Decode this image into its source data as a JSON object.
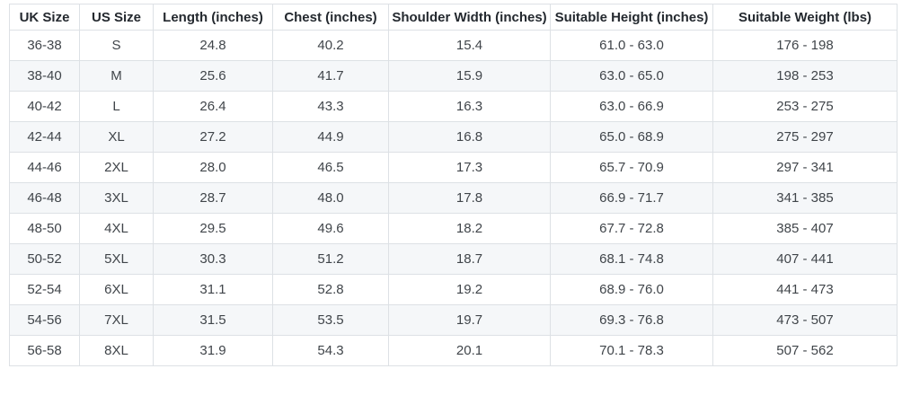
{
  "table": {
    "name": "size-chart",
    "columns": [
      "UK Size",
      "US Size",
      "Length (inches)",
      "Chest (inches)",
      "Shoulder Width (inches)",
      "Suitable Height (inches)",
      "Suitable Weight (lbs)"
    ],
    "rows": [
      [
        "36-38",
        "S",
        "24.8",
        "40.2",
        "15.4",
        "61.0 - 63.0",
        "176 - 198"
      ],
      [
        "38-40",
        "M",
        "25.6",
        "41.7",
        "15.9",
        "63.0 - 65.0",
        "198 - 253"
      ],
      [
        "40-42",
        "L",
        "26.4",
        "43.3",
        "16.3",
        "63.0 - 66.9",
        "253 - 275"
      ],
      [
        "42-44",
        "XL",
        "27.2",
        "44.9",
        "16.8",
        "65.0 - 68.9",
        "275 - 297"
      ],
      [
        "44-46",
        "2XL",
        "28.0",
        "46.5",
        "17.3",
        "65.7 - 70.9",
        "297 - 341"
      ],
      [
        "46-48",
        "3XL",
        "28.7",
        "48.0",
        "17.8",
        "66.9 - 71.7",
        "341 - 385"
      ],
      [
        "48-50",
        "4XL",
        "29.5",
        "49.6",
        "18.2",
        "67.7 - 72.8",
        "385 - 407"
      ],
      [
        "50-52",
        "5XL",
        "30.3",
        "51.2",
        "18.7",
        "68.1 - 74.8",
        "407 - 441"
      ],
      [
        "52-54",
        "6XL",
        "31.1",
        "52.8",
        "19.2",
        "68.9 - 76.0",
        "441 - 473"
      ],
      [
        "54-56",
        "7XL",
        "31.5",
        "53.5",
        "19.7",
        "69.3 - 76.8",
        "473 - 507"
      ],
      [
        "56-58",
        "8XL",
        "31.9",
        "54.3",
        "20.1",
        "70.1 - 78.3",
        "507 - 562"
      ]
    ],
    "colors": {
      "stripe_row_background": "#f5f7f9",
      "border": "#dde1e5",
      "header_text": "#24292f",
      "cell_text": "#40454a"
    }
  }
}
